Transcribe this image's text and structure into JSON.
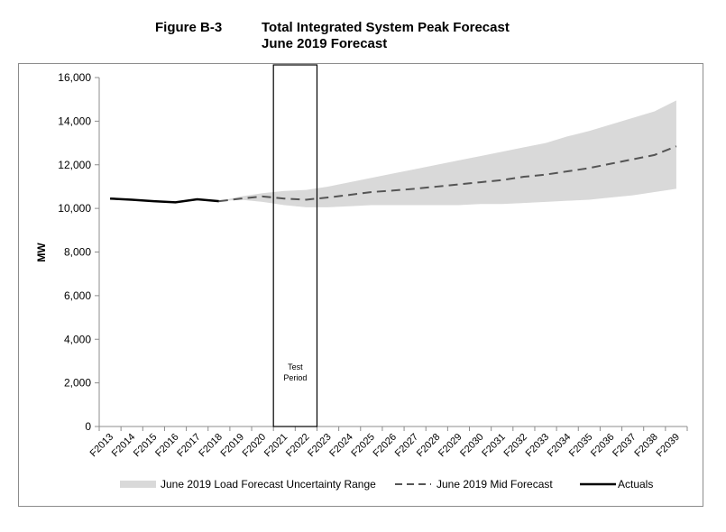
{
  "figure": {
    "label": "Figure B-3",
    "title_line1": "Total Integrated System Peak Forecast",
    "title_line2": "June 2019 Forecast"
  },
  "chart_data": {
    "type": "line",
    "categories": [
      "F2013",
      "F2014",
      "F2015",
      "F2016",
      "F2017",
      "F2018",
      "F2019",
      "F2020",
      "F2021",
      "F2022",
      "F2023",
      "F2024",
      "F2025",
      "F2026",
      "F2027",
      "F2028",
      "F2029",
      "F2030",
      "F2031",
      "F2032",
      "F2033",
      "F2034",
      "F2035",
      "F2036",
      "F2037",
      "F2038",
      "F2039"
    ],
    "ylabel": "MW",
    "ylim": [
      0,
      16000
    ],
    "yticks": [
      "0",
      "2,000",
      "4,000",
      "6,000",
      "8,000",
      "10,000",
      "12,000",
      "14,000",
      "16,000"
    ],
    "series": [
      {
        "name": "Actuals",
        "color": "#000000",
        "style": "solid",
        "values": [
          10450,
          10400,
          10330,
          10280,
          10420,
          10330,
          null,
          null,
          null,
          null,
          null,
          null,
          null,
          null,
          null,
          null,
          null,
          null,
          null,
          null,
          null,
          null,
          null,
          null,
          null,
          null,
          null
        ]
      },
      {
        "name": "June 2019 Mid Forecast",
        "color": "#555555",
        "style": "dashed",
        "values": [
          null,
          null,
          null,
          null,
          null,
          10330,
          10450,
          10550,
          10450,
          10400,
          10500,
          10620,
          10750,
          10820,
          10900,
          11000,
          11100,
          11200,
          11300,
          11450,
          11550,
          11700,
          11850,
          12050,
          12250,
          12450,
          12850
        ]
      },
      {
        "name": "June 2019 Load Forecast Uncertainty Range",
        "color": "#d9d9d9",
        "style": "band",
        "lower": [
          null,
          null,
          null,
          null,
          null,
          10330,
          10400,
          10300,
          10150,
          10050,
          10050,
          10100,
          10150,
          10150,
          10150,
          10150,
          10150,
          10200,
          10200,
          10250,
          10300,
          10350,
          10400,
          10500,
          10600,
          10750,
          10900
        ],
        "upper": [
          null,
          null,
          null,
          null,
          null,
          10330,
          10550,
          10700,
          10800,
          10850,
          11000,
          11200,
          11400,
          11600,
          11800,
          12000,
          12200,
          12400,
          12600,
          12800,
          13000,
          13300,
          13550,
          13850,
          14150,
          14450,
          14950
        ]
      }
    ],
    "annotation": {
      "text_line1": "Test",
      "text_line2": "Period",
      "from": "F2021",
      "to": "F2022"
    },
    "legend": {
      "position": "bottom",
      "items": [
        "June 2019 Load Forecast Uncertainty Range",
        "June 2019 Mid Forecast",
        "Actuals"
      ]
    },
    "grid": false
  }
}
